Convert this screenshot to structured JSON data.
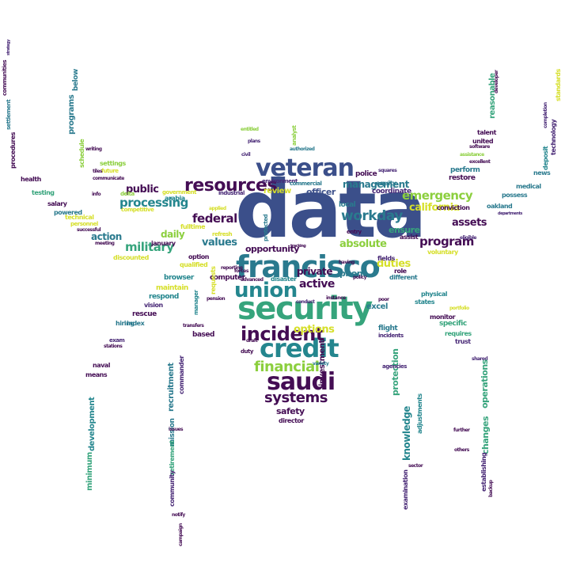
{
  "words": {
    "data": "data",
    "francisco": "francisco",
    "security": "security",
    "veteran": "veteran",
    "union": "union",
    "credit": "credit",
    "saudi": "saudi",
    "incident": "incident",
    "resources": "resources",
    "financial": "financial",
    "systems": "systems",
    "processing": "processing",
    "federal": "federal",
    "military": "military",
    "workday": "workday",
    "management": "management",
    "program": "program",
    "emergency": "emergency",
    "california": "california",
    "absolute": "absolute",
    "active": "active",
    "options": "options",
    "duties": "duties",
    "assets": "assets",
    "public": "public",
    "action": "action",
    "daily": "daily",
    "values": "values",
    "opportunity": "opportunity",
    "private": "private",
    "officer": "officer",
    "police": "police",
    "review": "review",
    "phone": "phone",
    "ensure": "ensure",
    "computer": "computer",
    "browser": "browser",
    "maintain": "maintain",
    "respond": "respond",
    "rescue": "rescue",
    "hiring": "hiring",
    "vision": "vision",
    "index": "index",
    "exam": "exam",
    "naval": "naval",
    "means": "means",
    "salary": "salary",
    "testing": "testing",
    "powered": "powered",
    "technical": "technical",
    "personnel": "personnel",
    "successful": "successful",
    "health": "health",
    "settings": "settings",
    "future": "future",
    "delta": "delta",
    "arabia": "arabia",
    "competitive": "competitive",
    "government": "government",
    "industrial": "industrial",
    "environment": "environment",
    "commercial": "commercial",
    "analyst": "analyst",
    "coordinate": "coordinate",
    "equity": "equity",
    "local": "local",
    "fields": "fields",
    "role": "role",
    "different": "different",
    "excel": "excel",
    "flight": "flight",
    "incidents": "incidents",
    "monitor": "monitor",
    "physical": "physical",
    "states": "states",
    "specific": "specific",
    "requires": "requires",
    "trust": "trust",
    "shared": "shared",
    "voluntary": "voluntary",
    "conviction": "conviction",
    "restore": "restore",
    "perform": "perform",
    "assistance": "assistance",
    "united": "united",
    "software": "software",
    "talent": "talent",
    "oakland": "oakland",
    "possess": "possess",
    "medical": "medical",
    "news": "news",
    "deposit": "deposit",
    "technology": "technology",
    "standards": "standards",
    "reasonable": "reasonable",
    "programs": "programs",
    "below": "below",
    "schedule": "schedule",
    "procedures": "procedures",
    "settlement": "settlement",
    "communities": "communities",
    "development": "development",
    "minimum": "minimum",
    "recruitment": "recruitment",
    "mission": "mission",
    "retirement": "retirement",
    "community": "community",
    "commander": "commander",
    "knowledge": "knowledge",
    "protection": "protection",
    "examination": "examination",
    "adjustments": "adjustments",
    "operations": "operations",
    "changes": "changes",
    "establishing": "establishing",
    "investment": "investment",
    "safety": "safety",
    "director": "director",
    "disaster": "disaster",
    "based": "based",
    "january": "january",
    "discounted": "discounted",
    "option": "option",
    "qualified": "qualified",
    "fulltime": "fulltime",
    "refresh": "refresh",
    "entry": "entry",
    "assist": "assist",
    "agencies": "agencies",
    "employee": "employee",
    "auditor": "auditor",
    "entitled": "entitled",
    "plans": "plans",
    "civil": "civil",
    "tiles": "tiles",
    "writing": "writing",
    "communicate": "communicate",
    "info": "info",
    "meeting": "meeting",
    "stations": "stations",
    "transfers": "transfers",
    "manager": "manager",
    "applied": "applied",
    "duty": "duty",
    "tracking": "tracking",
    "conduct": "conduct",
    "variety": "variety",
    "requests": "requests",
    "squares": "squares",
    "authorized": "authorized",
    "eligible": "eligible",
    "departments": "departments",
    "excellent": "excellent",
    "portfolio": "portfolio",
    "notify": "notify",
    "campaign": "campaign",
    "issues": "issues",
    "further": "further",
    "others": "others",
    "backup": "backup",
    "developer": "developer",
    "completion": "completion",
    "strategy": "strategy",
    "vehicle": "vehicle",
    "desire": "desire",
    "forces": "forces",
    "advanced": "advanced",
    "reporting": "reporting",
    "instance": "instance",
    "protected": "protected",
    "draft": "draft",
    "policy": "policy",
    "having": "having",
    "gateway": "gateway",
    "enable": "enable",
    "tools": "tools",
    "pension": "pension",
    "graduate": "graduate",
    "poor": "poor",
    "sector": "sector"
  }
}
